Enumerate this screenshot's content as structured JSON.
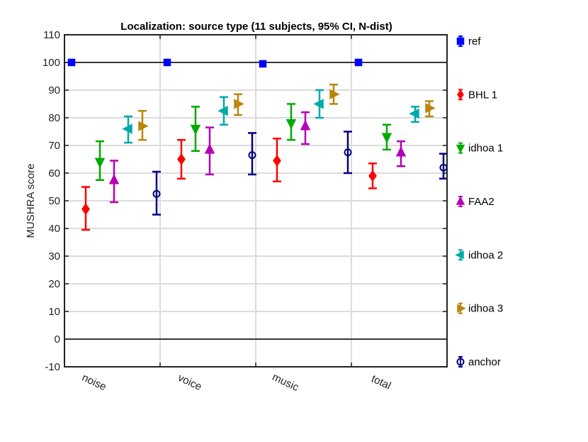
{
  "chart_data": {
    "type": "scatter",
    "title": "Localization: source type (11 subjects, 95% CI, N-dist)",
    "xlabel": "",
    "ylabel": "MUSHRA score",
    "ylim": [
      -10,
      110
    ],
    "yticks": [
      -10,
      0,
      10,
      20,
      30,
      40,
      50,
      60,
      70,
      80,
      90,
      100,
      110
    ],
    "categories": [
      "noise",
      "voice",
      "music",
      "total"
    ],
    "grid": true,
    "legend_position": "right",
    "series": [
      {
        "name": "ref",
        "color": "#0000ff",
        "marker": "square",
        "values": [
          100,
          100,
          99.5,
          100
        ],
        "lower": [
          100,
          100,
          99.5,
          100
        ],
        "upper": [
          100,
          100,
          99.5,
          100
        ]
      },
      {
        "name": "BHL 1",
        "color": "#ff0000",
        "marker": "diamond",
        "values": [
          47,
          65,
          64.5,
          59
        ],
        "lower": [
          39.5,
          58,
          57,
          54.5
        ],
        "upper": [
          55,
          72,
          72.5,
          63.5
        ]
      },
      {
        "name": "idhoa 1",
        "color": "#00aa00",
        "marker": "triangle-down",
        "values": [
          64,
          76,
          78,
          73
        ],
        "lower": [
          57.5,
          68,
          72,
          68.5
        ],
        "upper": [
          71.5,
          84,
          85,
          77.5
        ]
      },
      {
        "name": "FAA2",
        "color": "#b400b4",
        "marker": "triangle-up",
        "values": [
          57.5,
          68.5,
          77,
          67.5
        ],
        "lower": [
          49.5,
          59.5,
          70.5,
          62.5
        ],
        "upper": [
          64.5,
          76.5,
          82,
          71.5
        ]
      },
      {
        "name": "idhoa 2",
        "color": "#00aaaa",
        "marker": "triangle-left",
        "values": [
          76,
          82.5,
          85,
          81.5
        ],
        "lower": [
          71,
          77.5,
          80,
          78.5
        ],
        "upper": [
          80.5,
          87.5,
          90,
          84
        ]
      },
      {
        "name": "idhoa 3",
        "color": "#b8860b",
        "marker": "triangle-right",
        "values": [
          77,
          85,
          88.5,
          83.5
        ],
        "lower": [
          72,
          81,
          85,
          80.5
        ],
        "upper": [
          82.5,
          88.5,
          92,
          86
        ]
      },
      {
        "name": "anchor",
        "color": "#000080",
        "marker": "circle",
        "values": [
          52.5,
          66.5,
          67.5,
          62
        ],
        "lower": [
          45,
          59.5,
          60,
          58
        ],
        "upper": [
          60.5,
          74.5,
          75,
          67
        ]
      }
    ]
  }
}
